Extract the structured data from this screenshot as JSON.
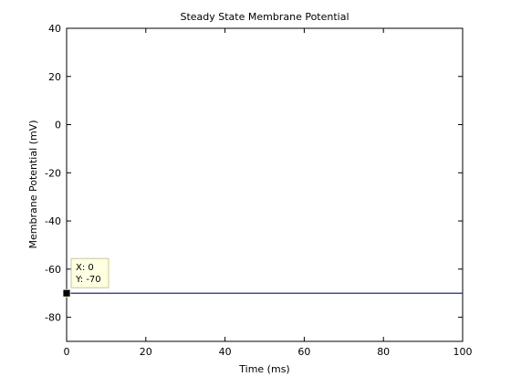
{
  "chart_data": {
    "type": "line",
    "title": "Steady State Membrane Potential",
    "xlabel": "Time (ms)",
    "ylabel": "Membrane Potential (mV)",
    "xlim": [
      0,
      100
    ],
    "ylim": [
      -90,
      40
    ],
    "xticks": [
      0,
      20,
      40,
      60,
      80,
      100
    ],
    "yticks": [
      -80,
      -60,
      -40,
      -20,
      0,
      20,
      40
    ],
    "grid": false,
    "series": [
      {
        "x": [
          0,
          100
        ],
        "y": [
          -70,
          -70
        ],
        "color": "#1f2a80"
      }
    ],
    "annotations": [
      {
        "kind": "data-tip",
        "x": 0,
        "y": -70,
        "text_x": "X: 0",
        "text_y": "Y: -70"
      }
    ]
  },
  "colors": {
    "axes": "#000000",
    "line": "#1f2a80",
    "datatip_bg": "#ffffe1",
    "datatip_border": "#c8c8a0",
    "marker": "#000000"
  }
}
